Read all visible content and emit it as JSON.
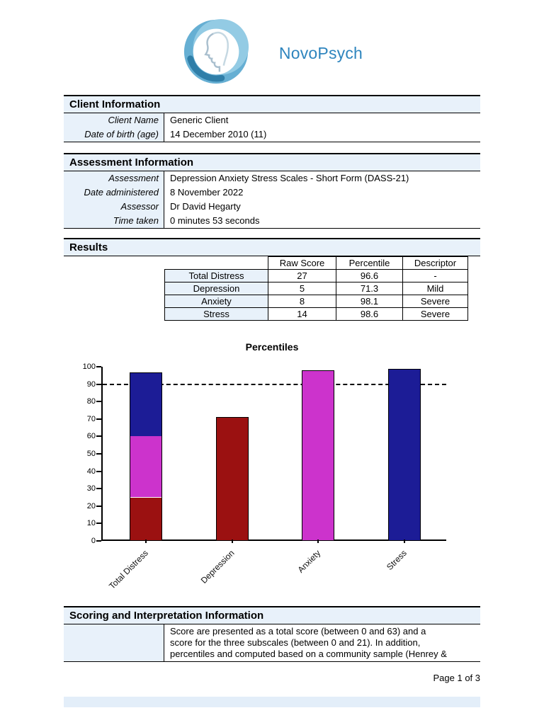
{
  "brand": {
    "name": "NovoPsych",
    "color": "#2E85BE"
  },
  "client_info": {
    "title": "Client Information",
    "rows": [
      {
        "label": "Client Name",
        "value": "Generic Client"
      },
      {
        "label": "Date of birth (age)",
        "value": "14 December 2010 (11)"
      }
    ]
  },
  "assessment_info": {
    "title": "Assessment Information",
    "rows": [
      {
        "label": "Assessment",
        "value": "Depression Anxiety Stress Scales - Short Form (DASS-21)"
      },
      {
        "label": "Date administered",
        "value": "8 November 2022"
      },
      {
        "label": "Assessor",
        "value": "Dr David Hegarty"
      },
      {
        "label": "Time taken",
        "value": "0 minutes 53 seconds"
      }
    ]
  },
  "results": {
    "title": "Results",
    "headers": {
      "raw_score": "Raw Score",
      "percentile": "Percentile",
      "descriptor": "Descriptor"
    },
    "rows": [
      {
        "name": "Total Distress",
        "raw_score": "27",
        "percentile": "96.6",
        "descriptor": "-"
      },
      {
        "name": "Depression",
        "raw_score": "5",
        "percentile": "71.3",
        "descriptor": "Mild"
      },
      {
        "name": "Anxiety",
        "raw_score": "8",
        "percentile": "98.1",
        "descriptor": "Severe"
      },
      {
        "name": "Stress",
        "raw_score": "14",
        "percentile": "98.6",
        "descriptor": "Severe"
      }
    ]
  },
  "chart_data": {
    "type": "bar",
    "title": "Percentiles",
    "categories": [
      "Total Distress",
      "Depression",
      "Anxiety",
      "Stress"
    ],
    "ylim": [
      0,
      100
    ],
    "ytick_step": 10,
    "grid": false,
    "legend": false,
    "reference_line": {
      "value": 90,
      "style": "dashed",
      "color": "#000000"
    },
    "bars": [
      {
        "label": "Total Distress",
        "total": 96.6,
        "segments": [
          {
            "value": 25,
            "color": "#9B1111"
          },
          {
            "value": 35,
            "color": "#CC33CC"
          },
          {
            "value": 36.6,
            "color": "#1C1C96"
          }
        ]
      },
      {
        "label": "Depression",
        "total": 71.3,
        "segments": [
          {
            "value": 71.3,
            "color": "#9B1111"
          }
        ]
      },
      {
        "label": "Anxiety",
        "total": 98.1,
        "segments": [
          {
            "value": 98.1,
            "color": "#CC33CC"
          }
        ]
      },
      {
        "label": "Stress",
        "total": 98.6,
        "segments": [
          {
            "value": 98.6,
            "color": "#1C1C96"
          }
        ]
      }
    ]
  },
  "scoring_info": {
    "title": "Scoring and Interpretation Information",
    "lines": [
      "Score are presented as a total score (between 0 and 63) and a",
      "score  for the three subscales (between 0 and 21). In addition,",
      "percentiles and computed based on a community sample (Henrey &"
    ]
  },
  "footer": {
    "page_label": "Page 1 of 3"
  }
}
